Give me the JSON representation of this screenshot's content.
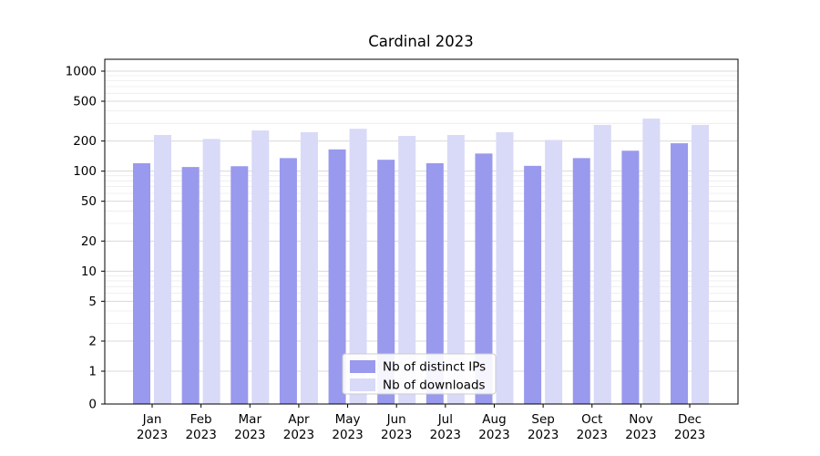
{
  "title": "Cardinal 2023",
  "chart_data": {
    "type": "bar",
    "title": "Cardinal 2023",
    "categories": [
      "Jan 2023",
      "Feb 2023",
      "Mar 2023",
      "Apr 2023",
      "May 2023",
      "Jun 2023",
      "Jul 2023",
      "Aug 2023",
      "Sep 2023",
      "Oct 2023",
      "Nov 2023",
      "Dec 2023"
    ],
    "series": [
      {
        "name": "Nb of distinct IPs",
        "color": "#9999ee",
        "values": [
          120,
          110,
          112,
          135,
          165,
          130,
          120,
          150,
          113,
          135,
          160,
          190
        ]
      },
      {
        "name": "Nb of downloads",
        "color": "#d9d9f8",
        "values": [
          230,
          210,
          255,
          245,
          265,
          225,
          230,
          245,
          205,
          290,
          335,
          290
        ]
      }
    ],
    "yscale": "symlog",
    "yticks": [
      0,
      1,
      2,
      5,
      10,
      20,
      50,
      100,
      200,
      500,
      1000
    ],
    "ylim": [
      0,
      1300
    ],
    "grid": true,
    "legend": {
      "position": "lower center",
      "entries": [
        "Nb of distinct IPs",
        "Nb of downloads"
      ]
    },
    "colors": {
      "major_grid": "#d9d9d9",
      "minor_grid": "#ececec",
      "axis": "#000000",
      "legend_border": "#cccccc"
    }
  }
}
